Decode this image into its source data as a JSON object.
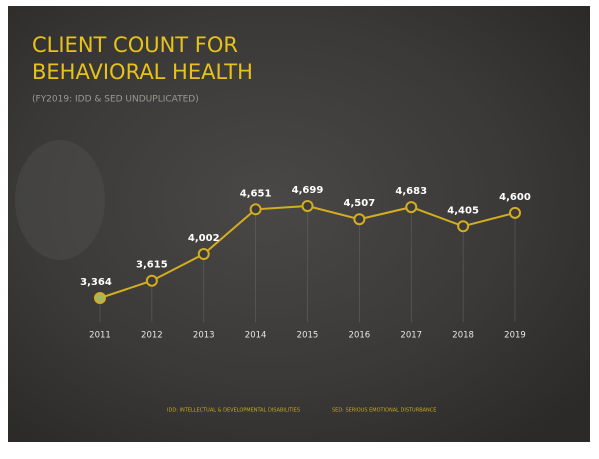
{
  "chart_data": {
    "type": "line",
    "title": "CLIENT COUNT FOR BEHAVIORAL HEALTH",
    "subtitle": "(FY2019: IDD & SED UNDUPLICATED)",
    "categories": [
      "2011",
      "2012",
      "2013",
      "2014",
      "2015",
      "2016",
      "2017",
      "2018",
      "2019"
    ],
    "values": [
      3364,
      3615,
      4002,
      4651,
      4699,
      4507,
      4683,
      4405,
      4600
    ],
    "value_labels": [
      "3,364",
      "3,615",
      "4,002",
      "4,651",
      "4,699",
      "4,507",
      "4,683",
      "4,405",
      "4,600"
    ],
    "color": "#d4ae1f",
    "footnotes": [
      "IDD: INTELLECTUAL & DEVELOPMENTAL DISABILITIES",
      "SED: SERIOUS EMOTIONAL DISTURBANCE"
    ]
  }
}
